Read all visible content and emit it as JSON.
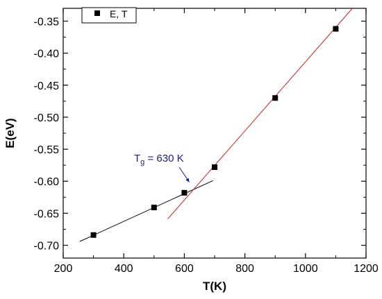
{
  "chart_data": {
    "type": "scatter",
    "xlabel": "T(K)",
    "ylabel": "E(eV)",
    "xlim": [
      200,
      1200
    ],
    "ylim": [
      -0.72,
      -0.33
    ],
    "x_ticks": [
      200,
      400,
      600,
      800,
      1000,
      1200
    ],
    "x_tick_labels": [
      "200",
      "400",
      "600",
      "800",
      "1000",
      "1200"
    ],
    "y_ticks": [
      -0.7,
      -0.65,
      -0.6,
      -0.55,
      -0.5,
      -0.45,
      -0.4,
      -0.35
    ],
    "y_tick_labels": [
      "-0.70",
      "-0.65",
      "-0.60",
      "-0.55",
      "-0.50",
      "-0.45",
      "-0.40",
      "-0.35"
    ],
    "legend_position": "top-left",
    "grid": false,
    "series": [
      {
        "name": "E, T",
        "marker": "square",
        "color": "#000000",
        "x": [
          300,
          500,
          600,
          700,
          900,
          1100
        ],
        "y": [
          -0.684,
          -0.641,
          -0.618,
          -0.578,
          -0.47,
          -0.362
        ]
      }
    ],
    "fit_lines": [
      {
        "color": "#000000",
        "x": [
          255,
          695
        ],
        "y": [
          -0.694,
          -0.599
        ]
      },
      {
        "color": "#cc2222",
        "x": [
          545,
          1155
        ],
        "y": [
          -0.659,
          -0.33
        ]
      }
    ],
    "annotation": {
      "text_main": "T",
      "text_sub": "g",
      "text_rest": " = 630 K",
      "color": "#1a1a8c",
      "arrow_target": {
        "x": 630,
        "y": -0.61
      }
    }
  }
}
